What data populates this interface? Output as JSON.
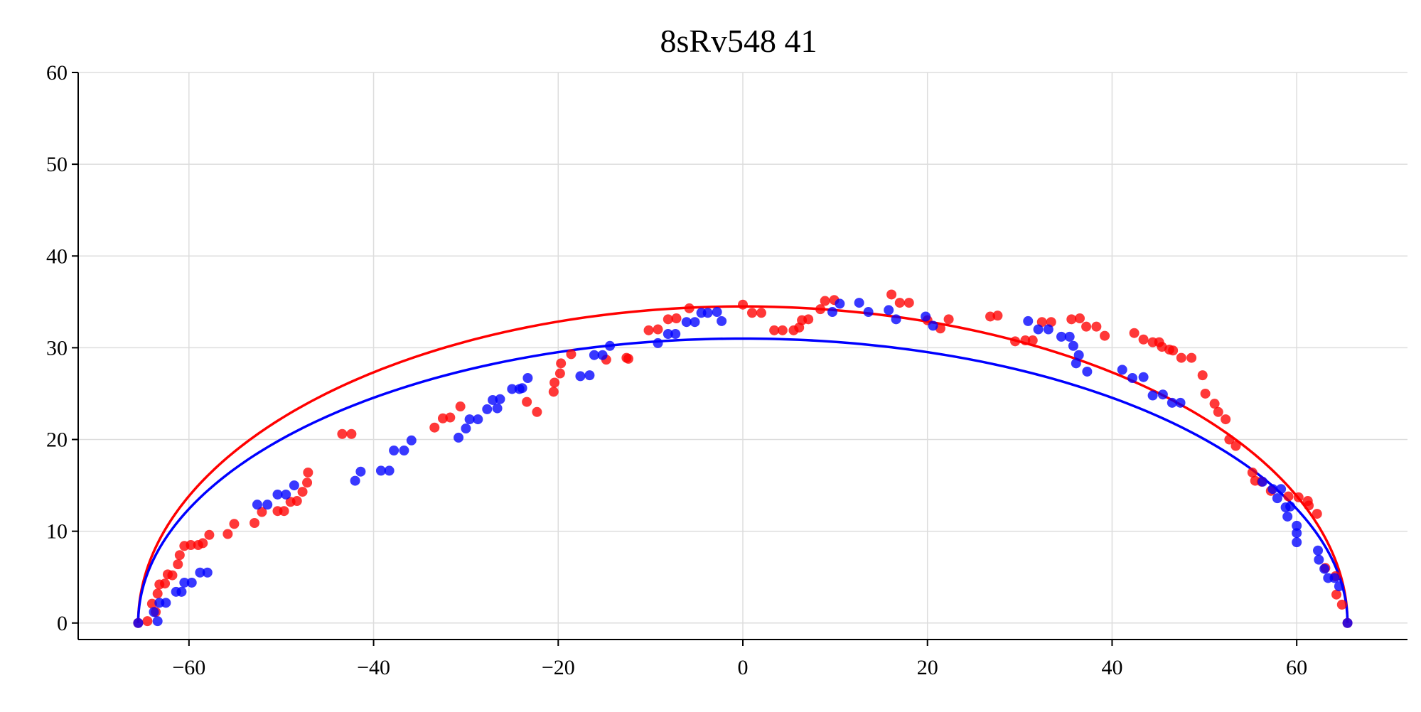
{
  "chart_data": {
    "type": "scatter",
    "title": "8sRv548 41",
    "xlabel": "",
    "ylabel": "",
    "xlim": [
      -72,
      72
    ],
    "ylim": [
      -1.8,
      60
    ],
    "xticks": [
      -60,
      -40,
      -20,
      0,
      20,
      40,
      60
    ],
    "yticks": [
      0,
      10,
      20,
      30,
      40,
      50,
      60
    ],
    "xtick_labels": [
      "−60",
      "−40",
      "−20",
      "0",
      "20",
      "40",
      "60"
    ],
    "ytick_labels": [
      "0",
      "10",
      "20",
      "30",
      "40",
      "50",
      "60"
    ],
    "grid": true,
    "legend": "none",
    "series": [
      {
        "color": "#ff0000",
        "points": [
          [
            -65.5,
            0
          ],
          [
            -64.5,
            0.2
          ],
          [
            -64,
            2.1
          ],
          [
            -63.6,
            1.2
          ],
          [
            -63.4,
            3.2
          ],
          [
            -63.2,
            4.2
          ],
          [
            -62.6,
            4.3
          ],
          [
            -62.3,
            5.3
          ],
          [
            -61.8,
            5.2
          ],
          [
            -61.2,
            6.4
          ],
          [
            -61,
            7.4
          ],
          [
            -60.5,
            8.4
          ],
          [
            -59.8,
            8.5
          ],
          [
            -59,
            8.5
          ],
          [
            -58.5,
            8.7
          ],
          [
            -57.8,
            9.6
          ],
          [
            -55.8,
            9.7
          ],
          [
            -55.1,
            10.8
          ],
          [
            -52.9,
            10.9
          ],
          [
            -52.1,
            12.1
          ],
          [
            -50.4,
            12.2
          ],
          [
            -49.7,
            12.2
          ],
          [
            -49,
            13.2
          ],
          [
            -48.3,
            13.3
          ],
          [
            -47.7,
            14.3
          ],
          [
            -47.2,
            15.3
          ],
          [
            -47.1,
            16.4
          ],
          [
            -43.4,
            20.6
          ],
          [
            -42.4,
            20.6
          ],
          [
            -33.4,
            21.3
          ],
          [
            -32.5,
            22.3
          ],
          [
            -31.7,
            22.4
          ],
          [
            -30.6,
            23.6
          ],
          [
            -23.4,
            24.1
          ],
          [
            -22.3,
            23.0
          ],
          [
            -20.5,
            25.2
          ],
          [
            -20.4,
            26.2
          ],
          [
            -19.8,
            27.2
          ],
          [
            -19.7,
            28.3
          ],
          [
            -18.6,
            29.3
          ],
          [
            -14.8,
            28.7
          ],
          [
            -12.6,
            28.9
          ],
          [
            -12.4,
            28.8
          ],
          [
            -10.2,
            31.9
          ],
          [
            -9.2,
            32.0
          ],
          [
            -8.1,
            33.1
          ],
          [
            -7.2,
            33.2
          ],
          [
            -5.8,
            34.3
          ],
          [
            0,
            34.7
          ],
          [
            1,
            33.8
          ],
          [
            2,
            33.8
          ],
          [
            3.4,
            31.9
          ],
          [
            4.3,
            31.9
          ],
          [
            5.5,
            31.9
          ],
          [
            6.1,
            32.2
          ],
          [
            6.4,
            33.0
          ],
          [
            7.1,
            33.1
          ],
          [
            8.4,
            34.2
          ],
          [
            8.9,
            35.1
          ],
          [
            9.9,
            35.2
          ],
          [
            16.1,
            35.8
          ],
          [
            17,
            34.9
          ],
          [
            18,
            34.9
          ],
          [
            20,
            33.0
          ],
          [
            21.4,
            32.1
          ],
          [
            22.3,
            33.1
          ],
          [
            26.8,
            33.4
          ],
          [
            27.6,
            33.5
          ],
          [
            29.5,
            30.7
          ],
          [
            30.6,
            30.8
          ],
          [
            31.4,
            30.8
          ],
          [
            32.4,
            32.8
          ],
          [
            33.4,
            32.8
          ],
          [
            35.6,
            33.1
          ],
          [
            36.5,
            33.2
          ],
          [
            37.2,
            32.3
          ],
          [
            38.3,
            32.3
          ],
          [
            39.2,
            31.3
          ],
          [
            42.4,
            31.6
          ],
          [
            43.4,
            30.9
          ],
          [
            44.4,
            30.6
          ],
          [
            45.1,
            30.6
          ],
          [
            45.4,
            30.1
          ],
          [
            46.2,
            29.8
          ],
          [
            46.6,
            29.7
          ],
          [
            47.5,
            28.9
          ],
          [
            48.6,
            28.9
          ],
          [
            49.8,
            27.0
          ],
          [
            50.1,
            25.0
          ],
          [
            51.1,
            23.9
          ],
          [
            51.5,
            23.0
          ],
          [
            52.3,
            22.2
          ],
          [
            52.7,
            20.0
          ],
          [
            53.4,
            19.3
          ],
          [
            55.2,
            16.4
          ],
          [
            55.5,
            15.5
          ],
          [
            56.2,
            15.4
          ],
          [
            57.2,
            14.4
          ],
          [
            59.1,
            13.8
          ],
          [
            60.2,
            13.7
          ],
          [
            61.2,
            13.3
          ],
          [
            61.3,
            12.8
          ],
          [
            62.2,
            11.9
          ],
          [
            63.1,
            6.0
          ],
          [
            64.2,
            5.1
          ],
          [
            64.3,
            3.1
          ],
          [
            64.9,
            2.0
          ],
          [
            65.5,
            0.0
          ]
        ]
      },
      {
        "color": "#0000ff",
        "points": [
          [
            -65.5,
            0
          ],
          [
            -63.8,
            1.2
          ],
          [
            -63.4,
            0.2
          ],
          [
            -63.2,
            2.2
          ],
          [
            -62.5,
            2.2
          ],
          [
            -61.4,
            3.4
          ],
          [
            -60.8,
            3.4
          ],
          [
            -60.5,
            4.4
          ],
          [
            -59.7,
            4.4
          ],
          [
            -58.8,
            5.5
          ],
          [
            -58,
            5.5
          ],
          [
            -52.6,
            12.9
          ],
          [
            -51.5,
            12.9
          ],
          [
            -50.4,
            14.0
          ],
          [
            -49.5,
            14.0
          ],
          [
            -48.6,
            15.0
          ],
          [
            -42,
            15.5
          ],
          [
            -41.4,
            16.5
          ],
          [
            -39.2,
            16.6
          ],
          [
            -38.3,
            16.6
          ],
          [
            -37.8,
            18.8
          ],
          [
            -36.7,
            18.8
          ],
          [
            -35.9,
            19.9
          ],
          [
            -30.8,
            20.2
          ],
          [
            -30,
            21.2
          ],
          [
            -29.6,
            22.2
          ],
          [
            -28.7,
            22.2
          ],
          [
            -27.7,
            23.3
          ],
          [
            -27.1,
            24.3
          ],
          [
            -26.6,
            23.4
          ],
          [
            -26.3,
            24.4
          ],
          [
            -25,
            25.5
          ],
          [
            -24.2,
            25.5
          ],
          [
            -23.9,
            25.6
          ],
          [
            -23.3,
            26.7
          ],
          [
            -17.6,
            26.9
          ],
          [
            -16.6,
            27.0
          ],
          [
            -16.1,
            29.2
          ],
          [
            -15.2,
            29.2
          ],
          [
            -14.4,
            30.2
          ],
          [
            -9.2,
            30.5
          ],
          [
            -8.1,
            31.5
          ],
          [
            -7.3,
            31.5
          ],
          [
            -6.1,
            32.8
          ],
          [
            -5.2,
            32.8
          ],
          [
            -4.5,
            33.8
          ],
          [
            -3.8,
            33.8
          ],
          [
            -2.8,
            33.9
          ],
          [
            -2.3,
            32.9
          ],
          [
            9.7,
            33.9
          ],
          [
            10.5,
            34.8
          ],
          [
            12.6,
            34.9
          ],
          [
            13.6,
            33.9
          ],
          [
            15.8,
            34.1
          ],
          [
            16.6,
            33.1
          ],
          [
            19.8,
            33.4
          ],
          [
            20.6,
            32.4
          ],
          [
            30.9,
            32.9
          ],
          [
            32,
            32.0
          ],
          [
            33.1,
            32.0
          ],
          [
            34.5,
            31.2
          ],
          [
            35.4,
            31.2
          ],
          [
            35.8,
            30.2
          ],
          [
            36.1,
            28.3
          ],
          [
            36.4,
            29.2
          ],
          [
            37.3,
            27.4
          ],
          [
            41.1,
            27.6
          ],
          [
            42.2,
            26.7
          ],
          [
            43.4,
            26.8
          ],
          [
            44.4,
            24.8
          ],
          [
            45.5,
            24.9
          ],
          [
            46.5,
            24.0
          ],
          [
            47.4,
            24.0
          ],
          [
            56.3,
            15.4
          ],
          [
            57.4,
            14.6
          ],
          [
            57.9,
            13.6
          ],
          [
            58.3,
            14.6
          ],
          [
            58.8,
            12.6
          ],
          [
            59.0,
            11.6
          ],
          [
            59.3,
            12.7
          ],
          [
            60.0,
            8.8
          ],
          [
            60.0,
            9.8
          ],
          [
            60.0,
            10.6
          ],
          [
            62.3,
            7.9
          ],
          [
            62.4,
            6.9
          ],
          [
            63.0,
            5.9
          ],
          [
            63.4,
            4.9
          ],
          [
            64.1,
            4.9
          ],
          [
            64.6,
            4.0
          ],
          [
            65.5,
            0
          ]
        ]
      }
    ],
    "curves": [
      {
        "color": "#ff0000",
        "shape": "semi-ellipse",
        "center_x": 0,
        "semi_axis_x": 65.5,
        "semi_axis_y": 34.5
      },
      {
        "color": "#0000ff",
        "shape": "semi-ellipse",
        "center_x": 0,
        "semi_axis_x": 65.5,
        "semi_axis_y": 31.0
      }
    ]
  }
}
